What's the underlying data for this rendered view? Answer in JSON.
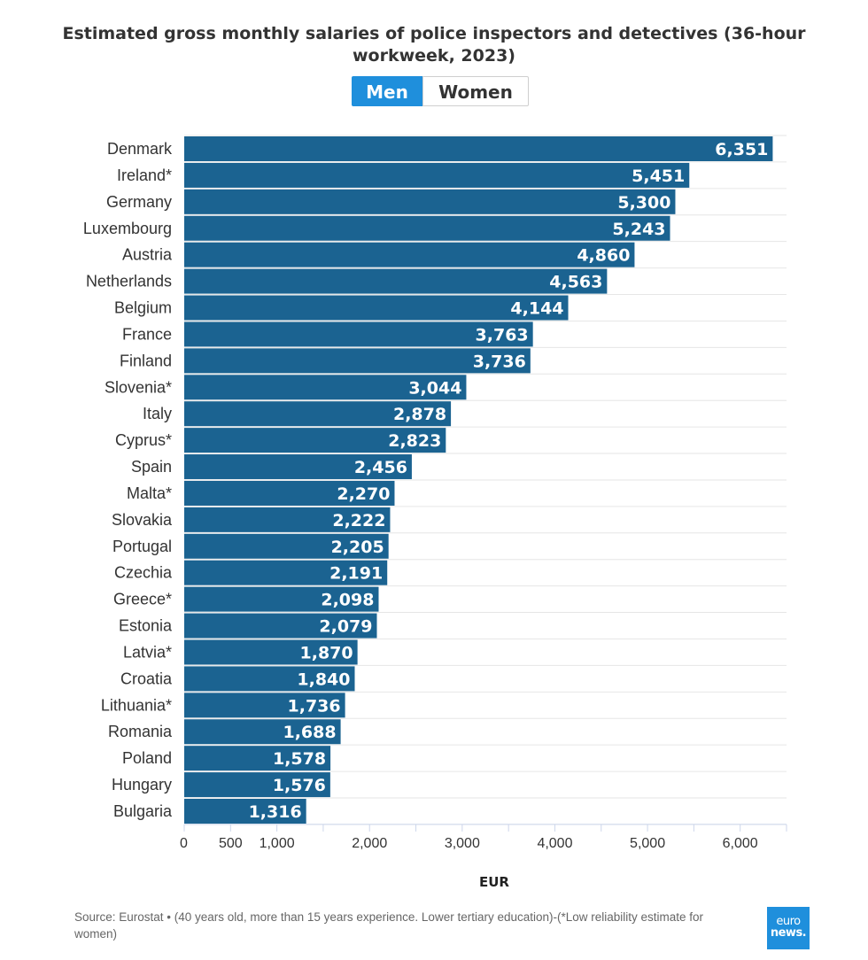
{
  "title": "Estimated gross monthly salaries of police inspectors and detectives (36-hour workweek, 2023)",
  "toggle": {
    "active": "Men",
    "inactive": "Women",
    "active_color": "#1f8fdc"
  },
  "footer": {
    "source": "Source: Eurostat • (40 years old, more than 15 years experience. Lower tertiary education)-(*Low reliability estimate for women)"
  },
  "logo": {
    "line1": "euro",
    "line2": "news.",
    "color": "#1f8fdc"
  },
  "chart_data": {
    "type": "bar",
    "orientation": "horizontal",
    "bar_color": "#1b6391",
    "xlabel": "EUR",
    "xlim": [
      0,
      6500
    ],
    "xticks": [
      {
        "value": 0,
        "label": "0"
      },
      {
        "value": 500,
        "label": "500"
      },
      {
        "value": 1000,
        "label": "1,000"
      },
      {
        "value": 2000,
        "label": "2,000"
      },
      {
        "value": 3000,
        "label": "3,000"
      },
      {
        "value": 4000,
        "label": "4,000"
      },
      {
        "value": 5000,
        "label": "5,000"
      },
      {
        "value": 6000,
        "label": "6,000"
      }
    ],
    "categories": [
      "Denmark",
      "Ireland*",
      "Germany",
      "Luxembourg",
      "Austria",
      "Netherlands",
      "Belgium",
      "France",
      "Finland",
      "Slovenia*",
      "Italy",
      "Cyprus*",
      "Spain",
      "Malta*",
      "Slovakia",
      "Portugal",
      "Czechia",
      "Greece*",
      "Estonia",
      "Latvia*",
      "Croatia",
      "Lithuania*",
      "Romania",
      "Poland",
      "Hungary",
      "Bulgaria"
    ],
    "values": [
      6351,
      5451,
      5300,
      5243,
      4860,
      4563,
      4144,
      3763,
      3736,
      3044,
      2878,
      2823,
      2456,
      2270,
      2222,
      2205,
      2191,
      2098,
      2079,
      1870,
      1840,
      1736,
      1688,
      1578,
      1576,
      1316
    ],
    "value_labels": [
      "6,351",
      "5,451",
      "5,300",
      "5,243",
      "4,860",
      "4,563",
      "4,144",
      "3,763",
      "3,736",
      "3,044",
      "2,878",
      "2,823",
      "2,456",
      "2,270",
      "2,222",
      "2,205",
      "2,191",
      "2,098",
      "2,079",
      "1,870",
      "1,840",
      "1,736",
      "1,688",
      "1,578",
      "1,576",
      "1,316"
    ]
  }
}
